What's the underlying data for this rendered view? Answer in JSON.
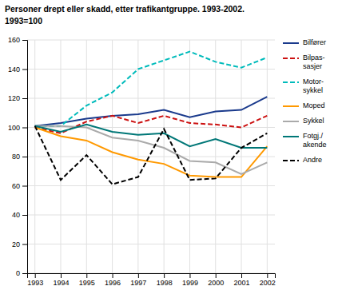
{
  "chart_data": {
    "type": "line",
    "title": "Personer drept eller skadd, etter trafikantgruppe. 1993-2002.",
    "subtitle": "1993=100",
    "x": [
      1993,
      1994,
      1995,
      1996,
      1997,
      1998,
      1999,
      2000,
      2001,
      2002
    ],
    "series": [
      {
        "name": "Bilfører",
        "color": "#1a3a8c",
        "line_style": "solid",
        "values": [
          101,
          103,
          106,
          108,
          109,
          112,
          107,
          111,
          112,
          121
        ]
      },
      {
        "name": "Bilpas-\nsasjer",
        "color": "#cc1111",
        "line_style": "dashed",
        "values": [
          100,
          96,
          104,
          108,
          103,
          108,
          103,
          102,
          100,
          108
        ]
      },
      {
        "name": "Motor-\nsykkel",
        "color": "#00bbbb",
        "line_style": "dashed",
        "values": [
          101,
          101,
          115,
          124,
          140,
          146,
          152,
          145,
          141,
          148
        ]
      },
      {
        "name": "Moped",
        "color": "#ff9900",
        "line_style": "solid",
        "values": [
          100,
          94,
          91,
          83,
          78,
          75,
          67,
          66,
          66,
          87
        ]
      },
      {
        "name": "Sykkel",
        "color": "#aaaaaa",
        "line_style": "solid",
        "values": [
          101,
          101,
          100,
          93,
          91,
          86,
          77,
          76,
          68,
          76
        ]
      },
      {
        "name": "Fotgj./\nakende",
        "color": "#007777",
        "line_style": "solid",
        "values": [
          101,
          97,
          102,
          97,
          95,
          96,
          87,
          92,
          86,
          86
        ]
      },
      {
        "name": "Andre",
        "color": "#000000",
        "line_style": "dashed",
        "values": [
          101,
          64,
          81,
          61,
          66,
          99,
          64,
          65,
          86,
          96
        ]
      }
    ],
    "xlim": [
      1992.7,
      2002.3
    ],
    "xticks": [
      1993,
      1994,
      1995,
      1996,
      1997,
      1998,
      1999,
      2000,
      2001,
      2002
    ],
    "ylim": [
      0,
      160
    ],
    "yticks": [
      0,
      20,
      40,
      60,
      80,
      100,
      120,
      140,
      160
    ],
    "grid": true,
    "legend": "right"
  }
}
